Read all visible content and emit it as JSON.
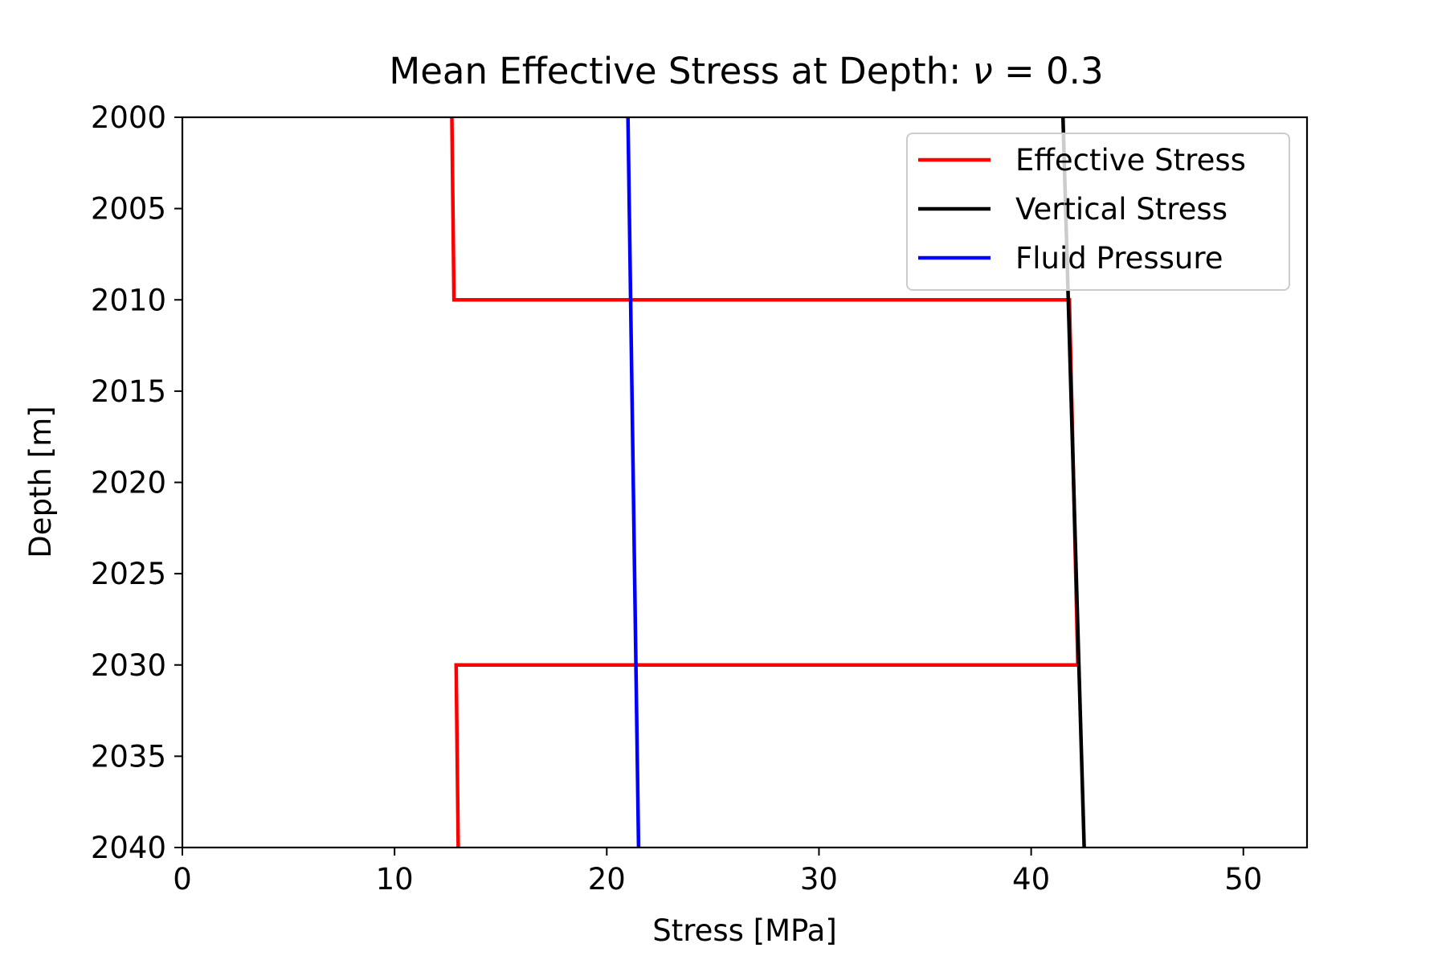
{
  "chart_data": {
    "type": "line",
    "title": "Mean Effective Stress at Depth: ν = 0.3",
    "title_prefix": "Mean Effective Stress at Depth: ",
    "title_symbol": "ν",
    "title_suffix": " = 0.3",
    "xlabel": "Stress [MPa]",
    "ylabel": "Depth [m]",
    "xlim": [
      0,
      53
    ],
    "ylim": [
      2040,
      2000
    ],
    "y_inverted": true,
    "xticks": [
      0,
      10,
      20,
      30,
      40,
      50
    ],
    "yticks": [
      2000,
      2005,
      2010,
      2015,
      2020,
      2025,
      2030,
      2035,
      2040
    ],
    "grid": false,
    "legend_position": "top-right",
    "series": [
      {
        "name": "Effective Stress",
        "color": "#ff0000",
        "x": [
          12.7,
          12.8,
          41.8,
          42.2,
          12.9,
          13.0
        ],
        "y": [
          2000,
          2010,
          2010,
          2030,
          2030,
          2040
        ]
      },
      {
        "name": "Vertical Stress",
        "color": "#000000",
        "x": [
          41.5,
          42.5
        ],
        "y": [
          2000,
          2040
        ]
      },
      {
        "name": "Fluid Pressure",
        "color": "#0000ff",
        "x": [
          21.0,
          21.5
        ],
        "y": [
          2000,
          2040
        ]
      }
    ]
  }
}
